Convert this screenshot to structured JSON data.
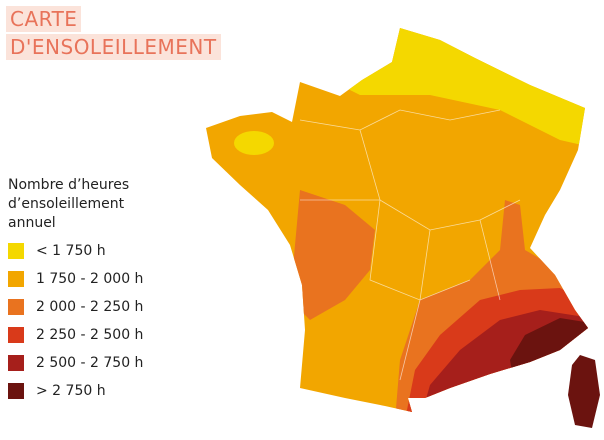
{
  "header": {
    "title_lines": [
      "CARTE",
      "D'ENSOLEILLEMENT"
    ]
  },
  "legend": {
    "title_lines": [
      "Nombre d’heures",
      "d’ensoleillement",
      "annuel"
    ],
    "items": [
      {
        "label": "< 1 750 h",
        "color": "#f4d800"
      },
      {
        "label": "1 750 - 2 000 h",
        "color": "#f2a600"
      },
      {
        "label": "2 000 - 2 250 h",
        "color": "#e9731f"
      },
      {
        "label": "2 250 - 2 500 h",
        "color": "#d93a1a"
      },
      {
        "label": "2 500 - 2 750 h",
        "color": "#a61f1b"
      },
      {
        "label": "> 2 750 h",
        "color": "#6b130f"
      }
    ]
  }
}
